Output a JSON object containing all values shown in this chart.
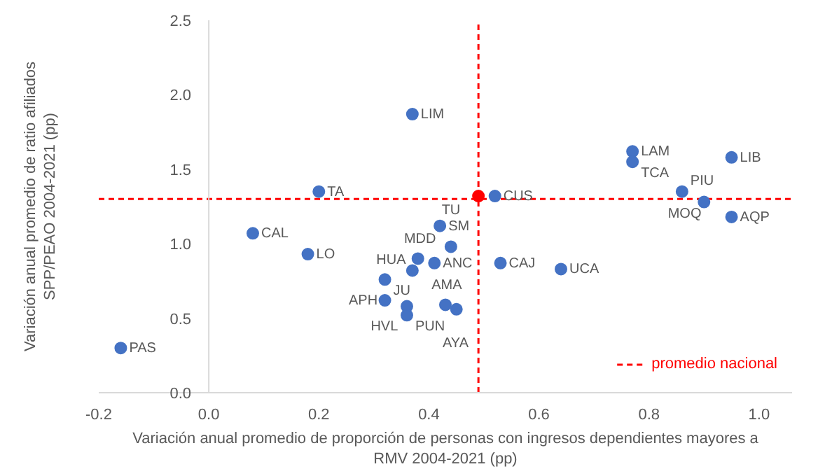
{
  "chart_data": {
    "type": "scatter",
    "xlabel": "Variación anual promedio de proporción de personas con ingresos dependientes mayores a\nRMV 2004-2021 (pp)",
    "ylabel": "Variación anual promedio de ratio afiliados\nSPP/PEAO 2004-2021 (pp)",
    "xlim": [
      -0.2,
      1.06
    ],
    "ylim": [
      0,
      2.5
    ],
    "xticks": [
      {
        "value": -0.2,
        "label": "-0.2"
      },
      {
        "value": 0,
        "label": "0.0"
      },
      {
        "value": 0.2,
        "label": "0.2"
      },
      {
        "value": 0.4,
        "label": "0.4"
      },
      {
        "value": 0.6,
        "label": "0.6"
      },
      {
        "value": 0.8,
        "label": "0.8"
      },
      {
        "value": 1,
        "label": "1.0"
      }
    ],
    "yticks": [
      {
        "value": 0,
        "label": "0.0"
      },
      {
        "value": 0.5,
        "label": "0.5"
      },
      {
        "value": 1,
        "label": "1.0"
      },
      {
        "value": 1.5,
        "label": "1.5"
      },
      {
        "value": 2,
        "label": "2.0"
      },
      {
        "value": 2.5,
        "label": "2.5"
      }
    ],
    "grid": false,
    "marker": "circle",
    "legend": "bottom right",
    "series": [
      {
        "color": "#4472c4",
        "x": [
          -0.16,
          0.08,
          0.18,
          0.2,
          0.37,
          0.32,
          0.32,
          0.36,
          0.36,
          0.43,
          0.45,
          0.37,
          0.38,
          0.41,
          0.42,
          0.44,
          0.53,
          0.64,
          0.52,
          0.77,
          0.77,
          0.95,
          0.86,
          0.9,
          0.95
        ],
        "values": [
          0.3,
          1.07,
          0.93,
          1.35,
          1.87,
          0.76,
          0.62,
          0.58,
          0.52,
          0.59,
          0.56,
          0.82,
          0.9,
          0.87,
          1.12,
          0.98,
          0.87,
          0.83,
          1.32,
          1.62,
          1.55,
          1.58,
          1.35,
          1.28,
          1.18
        ]
      },
      {
        "color": "#ff0000",
        "x": [
          0.49
        ],
        "values": [
          1.32
        ]
      }
    ],
    "annotations": [
      {
        "text": "PAS",
        "x": -0.16,
        "y": 0.3
      },
      {
        "text": "CAL",
        "x": 0.08,
        "y": 1.07
      },
      {
        "text": "LO",
        "x": 0.18,
        "y": 0.93
      },
      {
        "text": "TA",
        "x": 0.2,
        "y": 1.35
      },
      {
        "text": "LIM",
        "x": 0.37,
        "y": 1.87
      },
      {
        "text": "JU",
        "x": 0.32,
        "y": 0.76
      },
      {
        "text": "APH",
        "x": 0.32,
        "y": 0.62
      },
      {
        "text": "PUN",
        "x": 0.36,
        "y": 0.58
      },
      {
        "text": "HVL",
        "x": 0.36,
        "y": 0.52
      },
      {
        "text": "AMA",
        "x": 0.43,
        "y": 0.59
      },
      {
        "text": "AYA",
        "x": 0.45,
        "y": 0.56
      },
      {
        "text": "HUA",
        "x": 0.37,
        "y": 0.82
      },
      {
        "text": "MDD",
        "x": 0.38,
        "y": 0.9
      },
      {
        "text": "ANC",
        "x": 0.41,
        "y": 0.87
      },
      {
        "text": "SM",
        "x": 0.42,
        "y": 1.12
      },
      {
        "text": "TU",
        "x": 0.44,
        "y": 0.98
      },
      {
        "text": "CAJ",
        "x": 0.53,
        "y": 0.87
      },
      {
        "text": "UCA",
        "x": 0.64,
        "y": 0.83
      },
      {
        "text": "CUS",
        "x": 0.52,
        "y": 1.32
      },
      {
        "text": "LAM",
        "x": 0.77,
        "y": 1.62
      },
      {
        "text": "TCA",
        "x": 0.77,
        "y": 1.55
      },
      {
        "text": "LIB",
        "x": 0.95,
        "y": 1.58
      },
      {
        "text": "PIU",
        "x": 0.86,
        "y": 1.35
      },
      {
        "text": "MOQ",
        "x": 0.9,
        "y": 1.28
      },
      {
        "text": "AQP",
        "x": 0.95,
        "y": 1.18
      }
    ],
    "ref_lines": [
      {
        "axis": "y",
        "value": 1.3,
        "label": "promedio nacional",
        "color": "#ff0000",
        "line_style": "dashed"
      },
      {
        "axis": "x",
        "value": 0.49,
        "color": "#ff0000",
        "line_style": "dashed"
      }
    ]
  }
}
